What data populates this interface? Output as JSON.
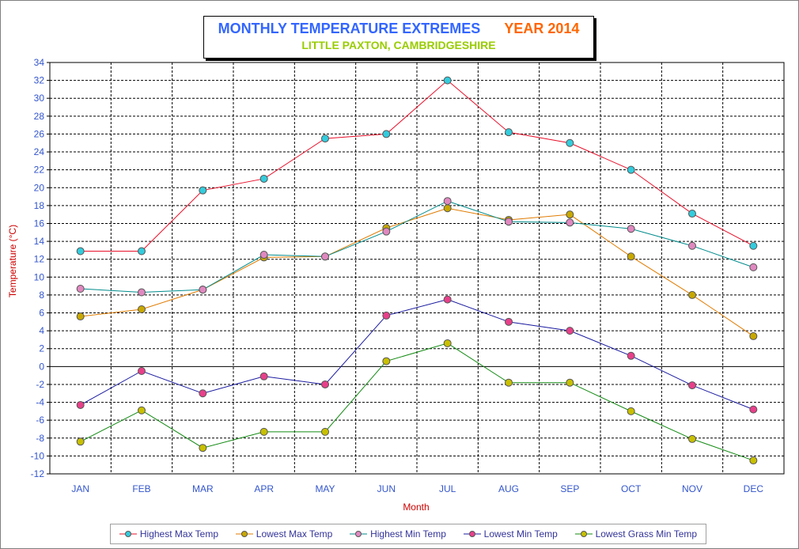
{
  "chart_data": {
    "type": "line",
    "title": "MONTHLY TEMPERATURE EXTREMES",
    "title_year": "YEAR  2014",
    "subtitle": "LITTLE PAXTON, CAMBRIDGESHIRE",
    "xlabel": "Month",
    "ylabel": "Temperature (°C)",
    "categories": [
      "JAN",
      "FEB",
      "MAR",
      "APR",
      "MAY",
      "JUN",
      "JUL",
      "AUG",
      "SEP",
      "OCT",
      "NOV",
      "DEC"
    ],
    "ylim": [
      -12,
      34
    ],
    "yticks": [
      "-12",
      "-10",
      "-8",
      "-6",
      "-4",
      "-2",
      "0",
      "2",
      "4",
      "6",
      "8",
      "10",
      "12",
      "14",
      "16",
      "18",
      "20",
      "22",
      "24",
      "26",
      "28",
      "30",
      "32",
      "34"
    ],
    "grid": true,
    "legend_position": "bottom",
    "series": [
      {
        "name": "Highest Max Temp",
        "line_color": "#e8102a",
        "marker_color": "#33ccdd",
        "values": [
          12.9,
          12.9,
          19.7,
          21.0,
          25.5,
          26.0,
          32.0,
          26.2,
          25.0,
          22.0,
          17.1,
          13.5
        ]
      },
      {
        "name": "Lowest Max Temp",
        "line_color": "#e07b00",
        "marker_color": "#c8a800",
        "values": [
          5.6,
          6.4,
          8.6,
          12.2,
          12.3,
          15.5,
          17.7,
          16.4,
          17.0,
          12.3,
          8.0,
          3.4
        ]
      },
      {
        "name": "Highest Min Temp",
        "line_color": "#008b8b",
        "marker_color": "#e088c0",
        "values": [
          8.7,
          8.3,
          8.6,
          12.5,
          12.3,
          15.1,
          18.5,
          16.2,
          16.1,
          15.4,
          13.5,
          11.1
        ]
      },
      {
        "name": "Lowest Min Temp",
        "line_color": "#1a1aa0",
        "marker_color": "#e8408a",
        "values": [
          -4.3,
          -0.5,
          -3.0,
          -1.1,
          -2.0,
          5.7,
          7.5,
          5.0,
          4.0,
          1.2,
          -2.1,
          -4.8
        ]
      },
      {
        "name": "Lowest Grass Min Temp",
        "line_color": "#138a13",
        "marker_color": "#c8c000",
        "values": [
          -8.4,
          -4.9,
          -9.1,
          -7.3,
          -7.3,
          0.6,
          2.6,
          -1.8,
          -1.8,
          -5.0,
          -8.1,
          -10.5
        ]
      }
    ]
  }
}
